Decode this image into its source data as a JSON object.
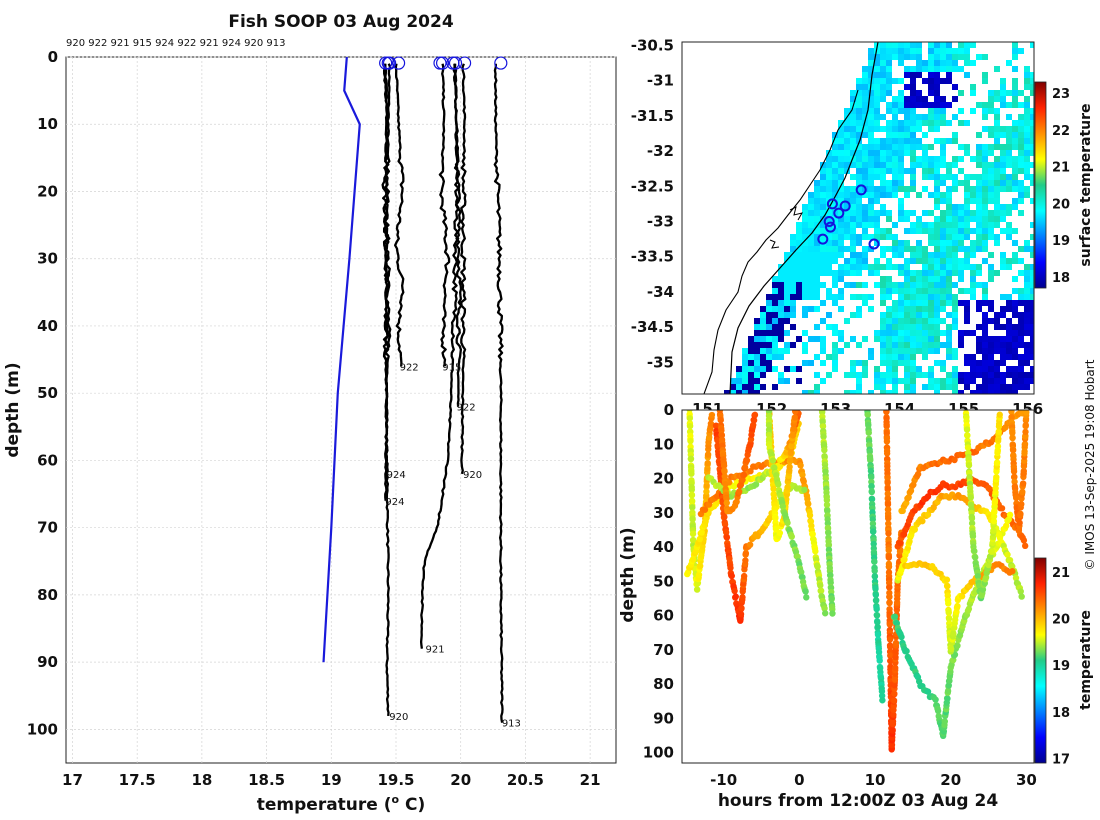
{
  "title": "Fish SOOP 03 Aug 2024",
  "credit": "© IMOS 13-Sep-2025 19:08 Hobart",
  "chart_data": [
    {
      "id": "profiles",
      "type": "line",
      "xlabel": "temperature (",
      "xlabel_sup": "o",
      "xlabel_end": " C)",
      "ylabel": "depth (m)",
      "xlim": [
        16.95,
        21.2
      ],
      "ylim": [
        0,
        105
      ],
      "xticks": [
        17,
        17.5,
        18,
        18.5,
        19,
        19.5,
        20,
        20.5,
        21
      ],
      "yticks": [
        0,
        10,
        20,
        30,
        40,
        50,
        60,
        70,
        80,
        90,
        100
      ],
      "header_ids": "920 922 921 915 924 922 921 924 920 913",
      "climatology": {
        "name": "climatology",
        "color": "#1a1adb",
        "temp": [
          19.12,
          19.1,
          19.22,
          19.18,
          19.14,
          19.05,
          19.0,
          18.97,
          18.94
        ],
        "depth": [
          0,
          5,
          10,
          20,
          30,
          50,
          70,
          80,
          90
        ]
      },
      "series": [
        {
          "id": "920",
          "temp": [
            19.45,
            19.44,
            19.43,
            19.42,
            19.43,
            19.44,
            19.43,
            19.44
          ],
          "depth": [
            1,
            10,
            20,
            40,
            60,
            80,
            90,
            98
          ]
        },
        {
          "id": "924",
          "temp": [
            19.42,
            19.43,
            19.41,
            19.44,
            19.42,
            19.43,
            19.42
          ],
          "depth": [
            1,
            10,
            20,
            30,
            40,
            55,
            66
          ]
        },
        {
          "id": "924",
          "temp": [
            19.41,
            19.43,
            19.42,
            19.44,
            19.43,
            19.42
          ],
          "depth": [
            1,
            10,
            25,
            40,
            50,
            62
          ]
        },
        {
          "id": "922",
          "temp": [
            19.5,
            19.52,
            19.55,
            19.5,
            19.56,
            19.52,
            19.54
          ],
          "depth": [
            1,
            10,
            20,
            28,
            35,
            40,
            46
          ]
        },
        {
          "id": "915",
          "temp": [
            19.86,
            19.87,
            19.85,
            19.9,
            19.86,
            19.88
          ],
          "depth": [
            1,
            10,
            20,
            30,
            40,
            46
          ]
        },
        {
          "id": "921",
          "temp": [
            19.96,
            19.97,
            19.95,
            19.9,
            19.82,
            19.72,
            19.7,
            19.7
          ],
          "depth": [
            1,
            20,
            40,
            60,
            70,
            75,
            82,
            88
          ]
        },
        {
          "id": "922",
          "temp": [
            19.95,
            19.97,
            19.98,
            19.99,
            19.98
          ],
          "depth": [
            1,
            10,
            20,
            35,
            52
          ]
        },
        {
          "id": "920",
          "temp": [
            20.02,
            20.03,
            20.02,
            20.02,
            20.01
          ],
          "depth": [
            1,
            10,
            20,
            40,
            62
          ]
        },
        {
          "id": "913",
          "temp": [
            20.27,
            20.27,
            20.3,
            20.31,
            20.31,
            20.32
          ],
          "depth": [
            1,
            10,
            30,
            50,
            80,
            99
          ]
        }
      ],
      "label_positions": [
        [
          19.44,
          98
        ],
        [
          19.41,
          66
        ],
        [
          19.42,
          62
        ],
        [
          19.52,
          46
        ],
        [
          19.85,
          46
        ],
        [
          19.72,
          88
        ],
        [
          19.96,
          52
        ],
        [
          20.01,
          62
        ],
        [
          20.31,
          99
        ]
      ],
      "surface_markers_temp": [
        19.42,
        19.44,
        19.45,
        19.52,
        19.84,
        19.86,
        19.94,
        19.96,
        20.03,
        20.31
      ]
    },
    {
      "id": "sst_map",
      "type": "heatmap",
      "colorbar_label": "surface temperature",
      "lon_lim": [
        150.6,
        156.1
      ],
      "lat_lim": [
        -35.45,
        -30.45
      ],
      "lon_ticks": [
        151,
        152,
        153,
        154,
        155,
        156
      ],
      "lat_ticks": [
        -30.5,
        -31,
        -31.5,
        -32,
        -32.5,
        -33,
        -33.5,
        -34,
        -34.5,
        -35
      ],
      "colorbar_ticks": [
        18,
        19,
        20,
        21,
        22,
        23
      ],
      "colorbar_range": [
        17.7,
        23.3
      ],
      "stations": [
        [
          153.4,
          -32.55
        ],
        [
          152.95,
          -32.75
        ],
        [
          153.15,
          -32.78
        ],
        [
          153.05,
          -32.88
        ],
        [
          152.9,
          -33.0
        ],
        [
          152.92,
          -33.08
        ],
        [
          152.8,
          -33.25
        ],
        [
          153.6,
          -33.32
        ]
      ]
    },
    {
      "id": "time_depth",
      "type": "scatter",
      "xlabel": "hours from 12:00Z 03 Aug 24",
      "ylabel": "depth (m)",
      "colorbar_label": "temperature",
      "xlim": [
        -15.5,
        31
      ],
      "ylim": [
        0,
        103
      ],
      "xticks": [
        -10,
        0,
        10,
        20,
        30
      ],
      "yticks": [
        0,
        10,
        20,
        30,
        40,
        50,
        60,
        70,
        80,
        90,
        100
      ],
      "colorbar_ticks": [
        17,
        18,
        19,
        20,
        21
      ],
      "colorbar_range": [
        16.9,
        21.3
      ]
    }
  ],
  "colors": {
    "profile": "#000000",
    "station": "#1414dc",
    "land_outline": "#000000"
  }
}
